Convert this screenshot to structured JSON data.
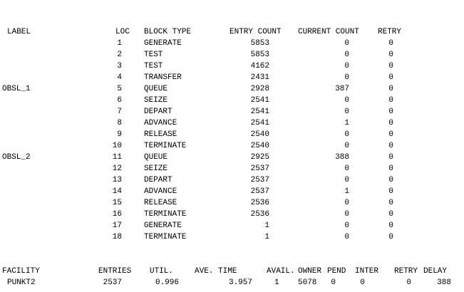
{
  "blocks": {
    "headers": [
      "LABEL",
      "LOC",
      "BLOCK TYPE",
      "ENTRY COUNT",
      "CURRENT COUNT",
      "RETRY"
    ],
    "rows": [
      [
        null,
        1,
        "GENERATE",
        5853,
        0,
        0
      ],
      [
        null,
        2,
        "TEST",
        5853,
        0,
        0
      ],
      [
        null,
        3,
        "TEST",
        4162,
        0,
        0
      ],
      [
        null,
        4,
        "TRANSFER",
        2431,
        0,
        0
      ],
      [
        "OBSL_1",
        5,
        "QUEUE",
        2928,
        387,
        0
      ],
      [
        null,
        6,
        "SEIZE",
        2541,
        0,
        0
      ],
      [
        null,
        7,
        "DEPART",
        2541,
        0,
        0
      ],
      [
        null,
        8,
        "ADVANCE",
        2541,
        1,
        0
      ],
      [
        null,
        9,
        "RELEASE",
        2540,
        0,
        0
      ],
      [
        null,
        10,
        "TERMINATE",
        2540,
        0,
        0
      ],
      [
        "OBSL_2",
        11,
        "QUEUE",
        2925,
        388,
        0
      ],
      [
        null,
        12,
        "SEIZE",
        2537,
        0,
        0
      ],
      [
        null,
        13,
        "DEPART",
        2537,
        0,
        0
      ],
      [
        null,
        14,
        "ADVANCE",
        2537,
        1,
        0
      ],
      [
        null,
        15,
        "RELEASE",
        2536,
        0,
        0
      ],
      [
        null,
        16,
        "TERMINATE",
        2536,
        0,
        0
      ],
      [
        null,
        17,
        "GENERATE",
        1,
        0,
        0
      ],
      [
        null,
        18,
        "TERMINATE",
        1,
        0,
        0
      ]
    ]
  },
  "facilities": {
    "headers": [
      "FACILITY",
      "ENTRIES",
      "UTIL.",
      "AVE. TIME",
      "AVAIL.",
      "OWNER",
      "PEND",
      "INTER",
      "RETRY",
      "DELAY"
    ],
    "rows": [
      [
        "PUNKT2",
        2537,
        0.996,
        3.957,
        1,
        5078,
        0,
        0,
        0,
        388
      ]
    ]
  }
}
